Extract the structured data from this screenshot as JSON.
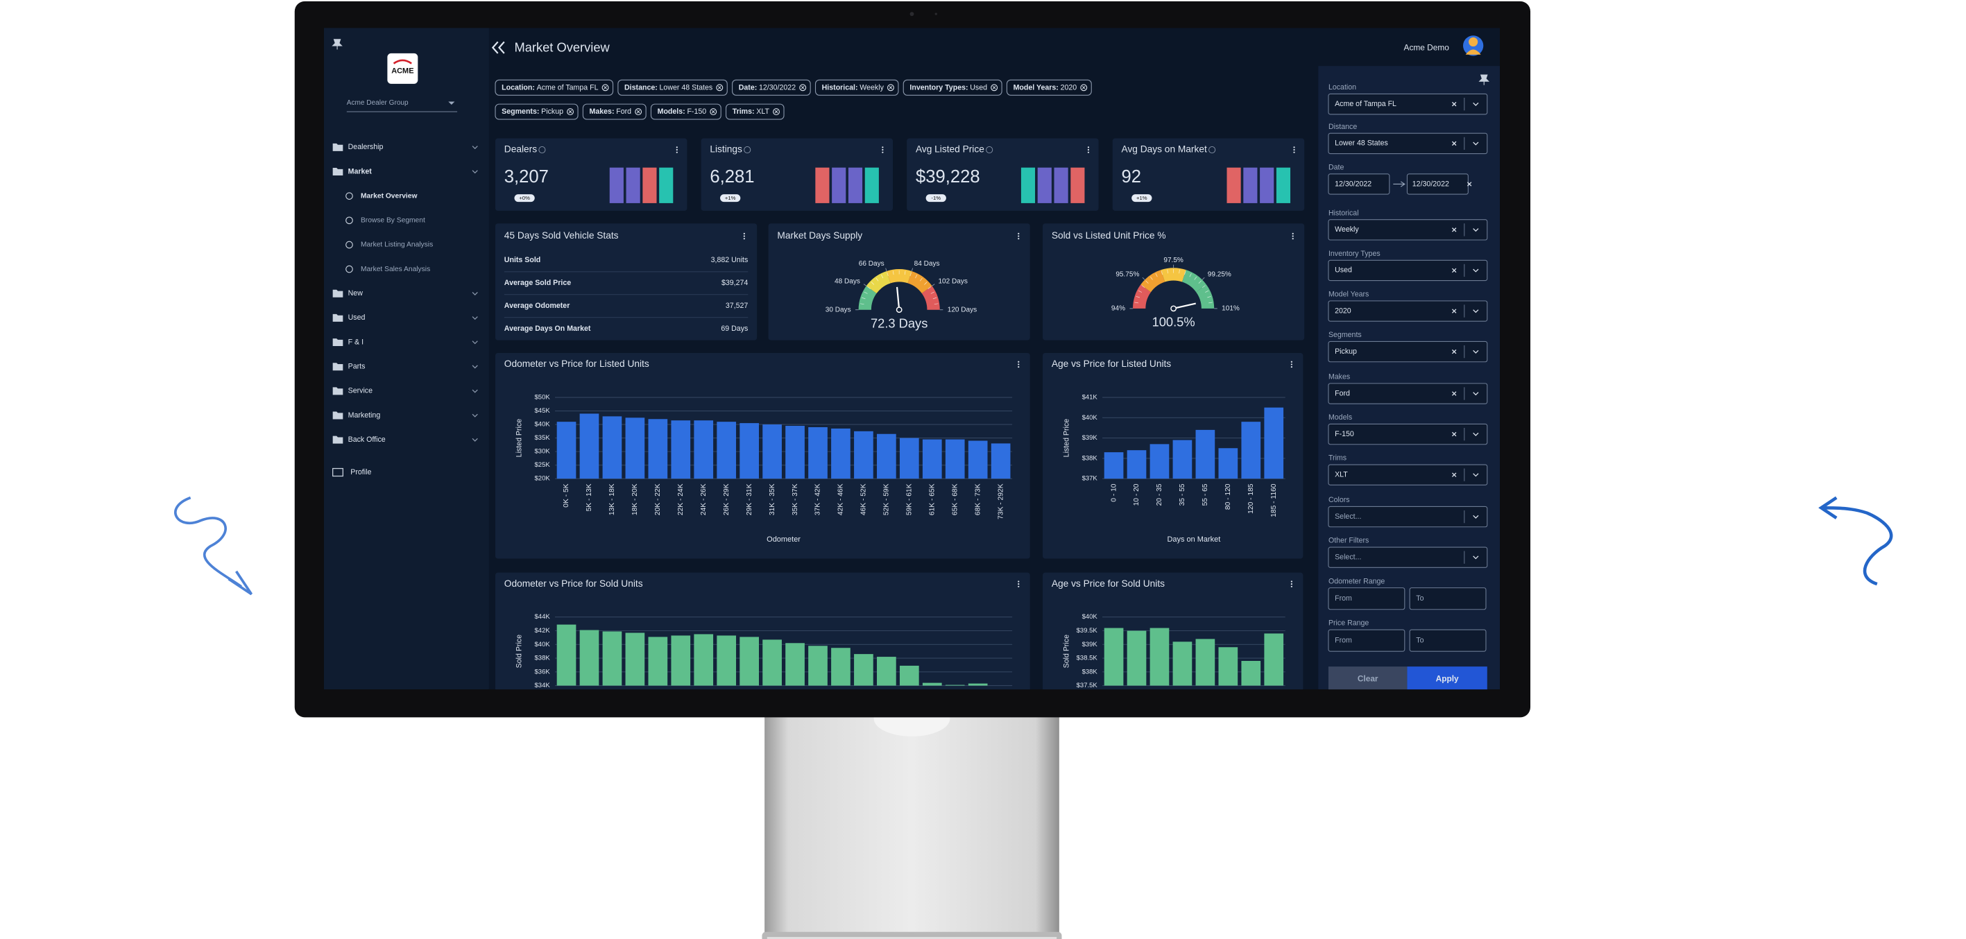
{
  "header": {
    "title": "Market Overview",
    "user": "Acme Demo"
  },
  "sidebar": {
    "logo": "ACME",
    "group": "Acme Dealer Group",
    "nav": [
      {
        "label": "Dealership"
      },
      {
        "label": "Market",
        "children": [
          "Market Overview",
          "Browse By Segment",
          "Market Listing Analysis",
          "Market Sales Analysis"
        ]
      },
      {
        "label": "New"
      },
      {
        "label": "Used"
      },
      {
        "label": "F & I"
      },
      {
        "label": "Parts"
      },
      {
        "label": "Service"
      },
      {
        "label": "Marketing"
      },
      {
        "label": "Back Office"
      }
    ],
    "profile": "Profile"
  },
  "filter_chips": [
    [
      {
        "label": "Location:",
        "value": "Acme of Tampa FL"
      },
      {
        "label": "Distance:",
        "value": "Lower 48 States"
      },
      {
        "label": "Date:",
        "value": "12/30/2022"
      },
      {
        "label": "Historical:",
        "value": "Weekly"
      },
      {
        "label": "Inventory Types:",
        "value": "Used"
      },
      {
        "label": "Model Years:",
        "value": "2020"
      }
    ],
    [
      {
        "label": "Segments:",
        "value": "Pickup"
      },
      {
        "label": "Makes:",
        "value": "Ford"
      },
      {
        "label": "Models:",
        "value": "F-150"
      },
      {
        "label": "Trims:",
        "value": "XLT"
      }
    ]
  ],
  "kpis": [
    {
      "title": "Dealers",
      "value": "3,207",
      "change": "+0%"
    },
    {
      "title": "Listings",
      "value": "6,281",
      "change": "+1%"
    },
    {
      "title": "Avg Listed Price",
      "value": "$39,228",
      "change": "-1%"
    },
    {
      "title": "Avg Days on Market",
      "value": "92",
      "change": "+1%"
    }
  ],
  "stats": {
    "title": "45 Days Sold Vehicle Stats",
    "rows": [
      [
        "Units Sold",
        "3,882 Units"
      ],
      [
        "Average Sold Price",
        "$39,274"
      ],
      [
        "Average Odometer",
        "37,527"
      ],
      [
        "Average Days On Market",
        "69 Days"
      ]
    ]
  },
  "gauges": [
    {
      "title": "Market Days Supply",
      "range": [
        30,
        120
      ],
      "ticks": [
        {
          "value": 30,
          "label": "30 Days"
        },
        {
          "value": 48,
          "label": "48 Days"
        },
        {
          "value": 66,
          "label": "66 Days"
        },
        {
          "value": 84,
          "label": "84 Days"
        },
        {
          "value": 102,
          "label": "102 Days"
        },
        {
          "value": 120,
          "label": "120 Days"
        }
      ],
      "value": 72.3,
      "value_label": "72.3 Days",
      "band_colors": [
        "#5fbf8c",
        "#e8d84a",
        "#f5c542",
        "#f0a030",
        "#e05b5b"
      ]
    },
    {
      "title": "Sold vs Listed Unit Price %",
      "range": [
        94,
        101
      ],
      "ticks": [
        {
          "value": 94,
          "label": "94%"
        },
        {
          "value": 95.75,
          "label": "95.75%"
        },
        {
          "value": 97.5,
          "label": "97.5%"
        },
        {
          "value": 99.25,
          "label": "99.25%"
        },
        {
          "value": 101,
          "label": "101%"
        }
      ],
      "value": 100.5,
      "value_label": "100.5%",
      "band_colors": [
        "#e05b5b",
        "#f0a030",
        "#f5c542",
        "#5fbf8c",
        "#5fbf8c"
      ]
    }
  ],
  "charts": [
    {
      "type": "bar",
      "title": "Odometer vs Price for Listed Units",
      "y_label": "Listed Price",
      "x_label": "Odometer",
      "categories": [
        "0K - 5K",
        "5K - 13K",
        "13K - 18K",
        "18K - 20K",
        "20K - 22K",
        "22K - 24K",
        "24K - 26K",
        "26K - 29K",
        "29K - 31K",
        "31K - 35K",
        "35K - 37K",
        "37K - 42K",
        "42K - 46K",
        "46K - 52K",
        "52K - 59K",
        "59K - 61K",
        "61K - 65K",
        "65K - 68K",
        "68K - 73K",
        "73K - 292K"
      ],
      "values": [
        41000,
        44000,
        43000,
        42500,
        42000,
        41500,
        41500,
        41000,
        40500,
        40000,
        39500,
        39000,
        38500,
        37500,
        36500,
        35000,
        34500,
        34500,
        34000,
        33000
      ],
      "color": "#2f6fe0",
      "ylim": [
        20000,
        50000
      ],
      "yticks": [
        {
          "value": 20000,
          "label": "$20K"
        },
        {
          "value": 25000,
          "label": "$25K"
        },
        {
          "value": 30000,
          "label": "$30K"
        },
        {
          "value": 35000,
          "label": "$35K"
        },
        {
          "value": 40000,
          "label": "$40K"
        },
        {
          "value": 45000,
          "label": "$45K"
        },
        {
          "value": 50000,
          "label": "$50K"
        }
      ],
      "grid": true
    },
    {
      "type": "bar",
      "title": "Age vs Price for Listed Units",
      "y_label": "Listed Price",
      "x_label": "Days on Market",
      "categories": [
        "0 - 10",
        "10 - 20",
        "20 - 35",
        "35 - 55",
        "55 - 65",
        "80 - 120",
        "120 - 185",
        "185 - 1160"
      ],
      "values": [
        38300,
        38400,
        38700,
        38900,
        39400,
        38500,
        39800,
        40500
      ],
      "color": "#2f6fe0",
      "ylim": [
        37000,
        41000
      ],
      "yticks": [
        {
          "value": 37000,
          "label": "$37K"
        },
        {
          "value": 38000,
          "label": "$38K"
        },
        {
          "value": 39000,
          "label": "$39K"
        },
        {
          "value": 40000,
          "label": "$40K"
        },
        {
          "value": 41000,
          "label": "$41K"
        }
      ],
      "grid": true
    },
    {
      "type": "bar",
      "title": "Odometer vs Price for Sold Units",
      "y_label": "Sold Price",
      "values": [
        42900,
        42100,
        41900,
        41700,
        41100,
        41300,
        41500,
        41300,
        41100,
        40700,
        40200,
        39800,
        39500,
        38600,
        38200,
        36900,
        34400,
        34100,
        34300,
        34000
      ],
      "color": "#5fbf8c",
      "ylim": [
        34000,
        44000
      ],
      "yticks": [
        {
          "value": 34000,
          "label": "$34K"
        },
        {
          "value": 36000,
          "label": "$36K"
        },
        {
          "value": 38000,
          "label": "$38K"
        },
        {
          "value": 40000,
          "label": "$40K"
        },
        {
          "value": 42000,
          "label": "$42K"
        },
        {
          "value": 44000,
          "label": "$44K"
        }
      ],
      "grid": true
    },
    {
      "type": "bar",
      "title": "Age vs Price for Sold Units",
      "y_label": "Sold Price",
      "values": [
        39600,
        39500,
        39600,
        39100,
        39200,
        38900,
        38400,
        39400
      ],
      "color": "#5fbf8c",
      "ylim": [
        37500,
        40000
      ],
      "yticks": [
        {
          "value": 37500,
          "label": "$37.5K"
        },
        {
          "value": 38000,
          "label": "$38K"
        },
        {
          "value": 38500,
          "label": "$38.5K"
        },
        {
          "value": 39000,
          "label": "$39K"
        },
        {
          "value": 39500,
          "label": "$39.5K"
        },
        {
          "value": 40000,
          "label": "$40K"
        }
      ],
      "grid": true
    }
  ],
  "filter_panel": {
    "fields": [
      {
        "label": "Location",
        "value": "Acme of Tampa FL"
      },
      {
        "label": "Distance",
        "value": "Lower 48 States"
      },
      {
        "label": "Date",
        "start": "12/30/2022",
        "end": "12/30/2022"
      },
      {
        "label": "Historical",
        "value": "Weekly"
      },
      {
        "label": "Inventory Types",
        "value": "Used"
      },
      {
        "label": "Model Years",
        "value": "2020"
      },
      {
        "label": "Segments",
        "value": "Pickup"
      },
      {
        "label": "Makes",
        "value": "Ford"
      },
      {
        "label": "Models",
        "value": "F-150"
      },
      {
        "label": "Trims",
        "value": "XLT"
      },
      {
        "label": "Colors",
        "placeholder": "Select..."
      },
      {
        "label": "Other Filters",
        "placeholder": "Select..."
      },
      {
        "label": "Odometer Range",
        "from": "From",
        "to": "To"
      },
      {
        "label": "Price Range",
        "from": "From",
        "to": "To"
      }
    ],
    "clear": "Clear",
    "apply": "Apply"
  }
}
